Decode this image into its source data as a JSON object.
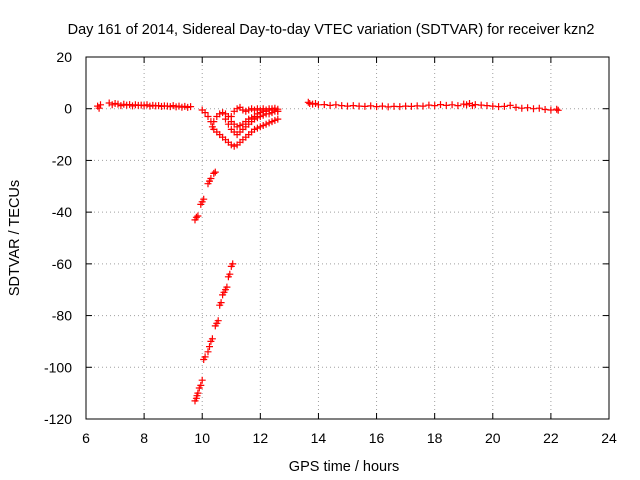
{
  "chart_data": {
    "type": "scatter",
    "title": "Day 161 of 2014, Sidereal Day-to-day VTEC variation (SDTVAR) for receiver kzn2",
    "xlabel": "GPS time / hours",
    "ylabel": "SDTVAR / TECUs",
    "xlim": [
      6,
      24
    ],
    "ylim": [
      -120,
      20
    ],
    "xticks": [
      6,
      8,
      10,
      12,
      14,
      16,
      18,
      20,
      22,
      24
    ],
    "yticks": [
      20,
      0,
      -20,
      -40,
      -60,
      -80,
      -100,
      -120
    ],
    "xtick_labels": [
      "6",
      "8",
      "10",
      "12",
      "14",
      "16",
      "18",
      "20",
      "22",
      "24"
    ],
    "ytick_labels": [
      "20",
      "0",
      "-20",
      "-40",
      "-60",
      "-80",
      "-100",
      "-120"
    ],
    "grid": true,
    "marker": "+",
    "color": "#ff0000",
    "series": [
      {
        "name": "kzn2",
        "points": [
          [
            6.4,
            1.0
          ],
          [
            6.45,
            0.2
          ],
          [
            6.5,
            1.5
          ],
          [
            6.8,
            2.2
          ],
          [
            6.9,
            1.5
          ],
          [
            7.0,
            2.0
          ],
          [
            7.1,
            1.8
          ],
          [
            7.2,
            1.2
          ],
          [
            7.3,
            1.7
          ],
          [
            7.4,
            1.4
          ],
          [
            7.5,
            1.6
          ],
          [
            7.6,
            1.1
          ],
          [
            7.7,
            1.5
          ],
          [
            7.8,
            1.3
          ],
          [
            7.9,
            1.4
          ],
          [
            8.0,
            1.2
          ],
          [
            8.1,
            1.5
          ],
          [
            8.2,
            1.0
          ],
          [
            8.3,
            1.3
          ],
          [
            8.4,
            1.1
          ],
          [
            8.5,
            1.2
          ],
          [
            8.6,
            0.9
          ],
          [
            8.7,
            1.1
          ],
          [
            8.8,
            1.0
          ],
          [
            8.9,
            0.8
          ],
          [
            9.0,
            1.2
          ],
          [
            9.1,
            0.7
          ],
          [
            9.2,
            1.0
          ],
          [
            9.3,
            0.6
          ],
          [
            9.4,
            0.9
          ],
          [
            9.5,
            0.5
          ],
          [
            9.6,
            0.8
          ],
          [
            9.75,
            -43
          ],
          [
            9.8,
            -42
          ],
          [
            9.85,
            -41.5
          ],
          [
            9.95,
            -37
          ],
          [
            10.0,
            -36
          ],
          [
            10.05,
            -35
          ],
          [
            10.2,
            -29
          ],
          [
            10.25,
            -28
          ],
          [
            10.3,
            -27
          ],
          [
            10.4,
            -25
          ],
          [
            10.45,
            -24.5
          ],
          [
            9.75,
            -113
          ],
          [
            9.8,
            -112
          ],
          [
            9.82,
            -111
          ],
          [
            9.85,
            -110
          ],
          [
            9.9,
            -108
          ],
          [
            9.95,
            -107
          ],
          [
            10.0,
            -105
          ],
          [
            10.05,
            -97
          ],
          [
            10.1,
            -96
          ],
          [
            10.2,
            -94
          ],
          [
            10.25,
            -92
          ],
          [
            10.3,
            -90
          ],
          [
            10.35,
            -89
          ],
          [
            10.45,
            -84
          ],
          [
            10.5,
            -83
          ],
          [
            10.55,
            -82
          ],
          [
            10.6,
            -76
          ],
          [
            10.65,
            -75
          ],
          [
            10.7,
            -72
          ],
          [
            10.75,
            -71
          ],
          [
            10.8,
            -70
          ],
          [
            10.85,
            -69
          ],
          [
            10.9,
            -65
          ],
          [
            10.95,
            -64
          ],
          [
            11.0,
            -61
          ],
          [
            11.05,
            -60
          ],
          [
            10.0,
            -0.5
          ],
          [
            10.1,
            -1.5
          ],
          [
            10.2,
            -3
          ],
          [
            10.3,
            -5
          ],
          [
            10.35,
            -7
          ],
          [
            10.4,
            -8
          ],
          [
            10.5,
            -9
          ],
          [
            10.6,
            -10
          ],
          [
            10.7,
            -11
          ],
          [
            10.8,
            -12
          ],
          [
            10.9,
            -13
          ],
          [
            11.0,
            -14
          ],
          [
            11.1,
            -14.5
          ],
          [
            11.2,
            -14
          ],
          [
            11.3,
            -13
          ],
          [
            11.4,
            -12
          ],
          [
            11.5,
            -11
          ],
          [
            11.6,
            -10
          ],
          [
            11.7,
            -9
          ],
          [
            11.8,
            -8
          ],
          [
            11.9,
            -7.5
          ],
          [
            12.0,
            -7
          ],
          [
            12.1,
            -6.5
          ],
          [
            12.2,
            -6
          ],
          [
            12.3,
            -5.5
          ],
          [
            12.4,
            -5
          ],
          [
            12.5,
            -4.5
          ],
          [
            12.6,
            -4
          ],
          [
            10.4,
            -5
          ],
          [
            10.5,
            -3
          ],
          [
            10.6,
            -2
          ],
          [
            10.7,
            -1.5
          ],
          [
            10.8,
            -4
          ],
          [
            10.9,
            -6
          ],
          [
            11.0,
            -8
          ],
          [
            11.1,
            -9
          ],
          [
            11.2,
            -10
          ],
          [
            11.3,
            -9
          ],
          [
            11.4,
            -8
          ],
          [
            11.5,
            -7
          ],
          [
            11.6,
            -6
          ],
          [
            11.7,
            -5
          ],
          [
            11.8,
            -4
          ],
          [
            11.9,
            -3.5
          ],
          [
            12.0,
            -3
          ],
          [
            12.1,
            -2.5
          ],
          [
            12.2,
            -2
          ],
          [
            12.3,
            -2
          ],
          [
            12.4,
            -1.5
          ],
          [
            12.5,
            -1
          ],
          [
            12.6,
            -1
          ],
          [
            11.0,
            -3
          ],
          [
            11.1,
            -1
          ],
          [
            11.2,
            0
          ],
          [
            11.3,
            0.5
          ],
          [
            11.4,
            -0.5
          ],
          [
            11.5,
            -1
          ],
          [
            11.6,
            -0.5
          ],
          [
            11.7,
            0
          ],
          [
            11.8,
            -0.5
          ],
          [
            11.9,
            0
          ],
          [
            12.0,
            -0.5
          ],
          [
            12.1,
            0
          ],
          [
            12.2,
            -0.5
          ],
          [
            12.3,
            0
          ],
          [
            12.4,
            0
          ],
          [
            12.5,
            0.2
          ],
          [
            12.6,
            -0.2
          ],
          [
            10.8,
            -2
          ],
          [
            10.9,
            -3
          ],
          [
            11.0,
            -5
          ],
          [
            11.1,
            -6
          ],
          [
            11.2,
            -7
          ],
          [
            11.3,
            -6.5
          ],
          [
            11.4,
            -6
          ],
          [
            11.5,
            -5
          ],
          [
            11.6,
            -4
          ],
          [
            11.7,
            -3.5
          ],
          [
            11.8,
            -3
          ],
          [
            11.9,
            -2
          ],
          [
            12.0,
            -1.5
          ],
          [
            12.1,
            -1
          ],
          [
            12.2,
            -1
          ],
          [
            12.3,
            -0.5
          ],
          [
            12.4,
            -0.5
          ],
          [
            12.5,
            -0.5
          ],
          [
            12.6,
            -1
          ],
          [
            13.65,
            2.5
          ],
          [
            13.7,
            2.0
          ],
          [
            13.8,
            1.8
          ],
          [
            13.9,
            2.0
          ],
          [
            14.0,
            1.5
          ],
          [
            14.2,
            1.6
          ],
          [
            14.4,
            1.3
          ],
          [
            14.6,
            1.5
          ],
          [
            14.8,
            1.2
          ],
          [
            15.0,
            1.0
          ],
          [
            15.2,
            1.2
          ],
          [
            15.4,
            1.0
          ],
          [
            15.6,
            0.9
          ],
          [
            15.8,
            1.1
          ],
          [
            16.0,
            0.8
          ],
          [
            16.2,
            1.0
          ],
          [
            16.4,
            0.7
          ],
          [
            16.6,
            0.9
          ],
          [
            16.8,
            0.8
          ],
          [
            17.0,
            1.0
          ],
          [
            17.2,
            0.9
          ],
          [
            17.4,
            1.1
          ],
          [
            17.6,
            1.0
          ],
          [
            17.8,
            1.4
          ],
          [
            18.0,
            1.2
          ],
          [
            18.2,
            1.6
          ],
          [
            18.4,
            1.3
          ],
          [
            18.6,
            1.5
          ],
          [
            18.8,
            1.2
          ],
          [
            19.0,
            1.8
          ],
          [
            19.1,
            1.5
          ],
          [
            19.2,
            2.0
          ],
          [
            19.3,
            1.2
          ],
          [
            19.4,
            1.6
          ],
          [
            19.6,
            1.4
          ],
          [
            19.8,
            1.2
          ],
          [
            20.0,
            1.0
          ],
          [
            20.2,
            0.8
          ],
          [
            20.4,
            0.9
          ],
          [
            20.6,
            1.3
          ],
          [
            20.8,
            0.5
          ],
          [
            21.0,
            0.2
          ],
          [
            21.2,
            0.4
          ],
          [
            21.4,
            0.0
          ],
          [
            21.6,
            0.2
          ],
          [
            21.8,
            -0.3
          ],
          [
            22.0,
            -0.5
          ],
          [
            22.2,
            -0.2
          ],
          [
            22.25,
            -0.6
          ]
        ]
      }
    ]
  }
}
